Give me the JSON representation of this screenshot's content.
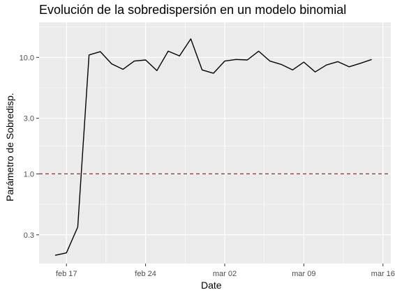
{
  "chart_data": {
    "type": "line",
    "title": "Evolución de la sobredispersión en un modelo binomial",
    "xlabel": "Date",
    "ylabel": "Parámetro de Sobredisp.",
    "y_scale": "log10",
    "grid": true,
    "x_ticks": [
      "feb 17",
      "feb 24",
      "mar 02",
      "mar 09",
      "mar 16"
    ],
    "y_ticks": [
      {
        "value": 0.3,
        "label": "0.3"
      },
      {
        "value": 1.0,
        "label": "1.0"
      },
      {
        "value": 3.0,
        "label": "3.0"
      },
      {
        "value": 10.0,
        "label": "10.0"
      }
    ],
    "xlim": [
      "2020-02-16",
      "2020-03-16"
    ],
    "ylim": [
      0.17,
      20
    ],
    "reference_line": {
      "value": 1.0,
      "color": "#ff0000",
      "style": "dashed"
    },
    "series": [
      {
        "color": "#000000",
        "x": [
          "2020-02-16",
          "2020-02-17",
          "2020-02-18",
          "2020-02-19",
          "2020-02-20",
          "2020-02-21",
          "2020-02-22",
          "2020-02-23",
          "2020-02-24",
          "2020-02-25",
          "2020-02-26",
          "2020-02-27",
          "2020-02-28",
          "2020-02-29",
          "2020-03-01",
          "2020-03-02",
          "2020-03-03",
          "2020-03-04",
          "2020-03-05",
          "2020-03-06",
          "2020-03-07",
          "2020-03-08",
          "2020-03-09",
          "2020-03-10",
          "2020-03-11",
          "2020-03-12",
          "2020-03-13",
          "2020-03-14",
          "2020-03-15"
        ],
        "y": [
          0.2,
          0.21,
          0.35,
          10.5,
          11.2,
          8.8,
          7.9,
          9.3,
          9.5,
          7.7,
          11.3,
          10.3,
          14.4,
          7.8,
          7.3,
          9.3,
          9.6,
          9.5,
          11.3,
          9.3,
          8.7,
          7.8,
          9.1,
          7.5,
          8.6,
          9.2,
          8.3,
          8.9,
          9.6
        ]
      }
    ]
  }
}
